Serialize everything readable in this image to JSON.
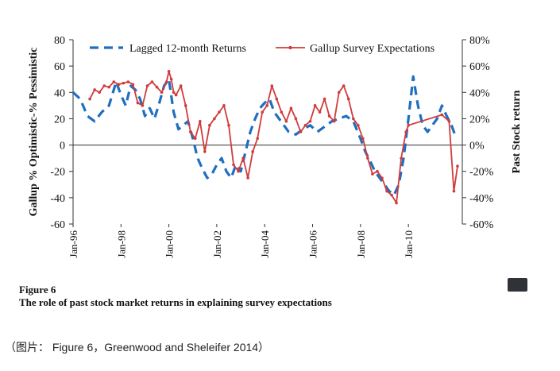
{
  "chart_data": {
    "type": "line",
    "title": "",
    "ylabel_left": "Gallup % Optimistic-% Pessimistic",
    "ylabel_right": "Past Stock return",
    "ylim_left": [
      -60,
      80
    ],
    "ylim_right": [
      -60,
      80
    ],
    "yticks_left": [
      "80",
      "60",
      "40",
      "20",
      "0",
      "-20",
      "-40",
      "-60"
    ],
    "yticks_right": [
      "80%",
      "60%",
      "40%",
      "20%",
      "0%",
      "-20%",
      "-40%",
      "-60%"
    ],
    "yticks_values": [
      80,
      60,
      40,
      20,
      0,
      -20,
      -40,
      -60
    ],
    "xlim": [
      1996.0,
      2012.25
    ],
    "xticks": [
      {
        "label": "Jan-96",
        "value": 1996.0
      },
      {
        "label": "Jan-98",
        "value": 1998.0
      },
      {
        "label": "Jan-00",
        "value": 2000.0
      },
      {
        "label": "Jan-02",
        "value": 2002.0
      },
      {
        "label": "Jan-04",
        "value": 2004.0
      },
      {
        "label": "Jan-06",
        "value": 2006.0
      },
      {
        "label": "Jan-08",
        "value": 2008.0
      },
      {
        "label": "Jan-10",
        "value": 2010.0
      }
    ],
    "legend_position": "top",
    "series": [
      {
        "name": "Lagged 12-month Returns",
        "color": "#1f6fc0",
        "style": "dashed",
        "axis": "right",
        "x": [
          1996.0,
          1996.3,
          1996.6,
          1996.9,
          1997.2,
          1997.5,
          1997.8,
          1998.0,
          1998.2,
          1998.4,
          1998.6,
          1998.8,
          1999.0,
          1999.2,
          1999.4,
          1999.6,
          1999.8,
          2000.0,
          2000.2,
          2000.4,
          2000.6,
          2000.8,
          2001.0,
          2001.2,
          2001.4,
          2001.6,
          2001.8,
          2002.0,
          2002.2,
          2002.4,
          2002.6,
          2002.8,
          2003.0,
          2003.2,
          2003.4,
          2003.6,
          2003.8,
          2004.0,
          2004.2,
          2004.4,
          2004.6,
          2004.8,
          2005.0,
          2005.3,
          2005.6,
          2005.9,
          2006.2,
          2006.5,
          2006.8,
          2007.1,
          2007.4,
          2007.7,
          2008.0,
          2008.2,
          2008.4,
          2008.6,
          2008.8,
          2009.0,
          2009.2,
          2009.4,
          2009.6,
          2009.8,
          2010.0,
          2010.2,
          2010.4,
          2010.6,
          2010.8,
          2011.0,
          2011.2,
          2011.4,
          2011.6,
          2011.8,
          2012.0
        ],
        "values": [
          40,
          35,
          22,
          18,
          25,
          30,
          48,
          38,
          30,
          45,
          42,
          35,
          22,
          28,
          20,
          32,
          45,
          50,
          25,
          12,
          15,
          18,
          5,
          -10,
          -18,
          -25,
          -22,
          -15,
          -10,
          -20,
          -25,
          -15,
          -20,
          -5,
          10,
          20,
          28,
          32,
          35,
          25,
          20,
          15,
          10,
          8,
          12,
          15,
          10,
          14,
          18,
          20,
          22,
          18,
          5,
          -5,
          -12,
          -20,
          -25,
          -30,
          -35,
          -38,
          -30,
          -10,
          20,
          52,
          30,
          15,
          10,
          15,
          20,
          30,
          22,
          15,
          5
        ]
      },
      {
        "name": "Gallup Survey Expectations",
        "color": "#d13b3b",
        "style": "solid-marker",
        "axis": "left",
        "x": [
          1996.7,
          1996.9,
          1997.1,
          1997.3,
          1997.5,
          1997.7,
          1997.9,
          1998.1,
          1998.3,
          1998.5,
          1998.7,
          1998.9,
          1999.1,
          1999.3,
          1999.5,
          1999.7,
          1999.9,
          2000.0,
          2000.1,
          2000.2,
          2000.3,
          2000.5,
          2000.7,
          2000.9,
          2001.1,
          2001.3,
          2001.5,
          2001.7,
          2001.9,
          2002.1,
          2002.3,
          2002.5,
          2002.7,
          2002.9,
          2003.1,
          2003.3,
          2003.5,
          2003.7,
          2003.9,
          2004.1,
          2004.3,
          2004.5,
          2004.7,
          2004.9,
          2005.1,
          2005.3,
          2005.5,
          2005.7,
          2005.9,
          2006.1,
          2006.3,
          2006.5,
          2006.7,
          2006.9,
          2007.1,
          2007.3,
          2007.5,
          2007.7,
          2007.9,
          2008.1,
          2008.3,
          2008.5,
          2008.7,
          2008.9,
          2009.1,
          2009.3,
          2009.5,
          2009.7,
          2009.9,
          2010.0,
          2011.4,
          2011.7,
          2011.9,
          2012.05
        ],
        "values": [
          35,
          42,
          40,
          45,
          44,
          48,
          46,
          47,
          48,
          46,
          32,
          30,
          45,
          48,
          44,
          40,
          48,
          56,
          50,
          40,
          38,
          45,
          30,
          10,
          5,
          18,
          -5,
          15,
          20,
          25,
          30,
          15,
          -15,
          -20,
          -10,
          -25,
          -5,
          5,
          25,
          30,
          45,
          35,
          25,
          18,
          28,
          20,
          10,
          15,
          18,
          30,
          25,
          35,
          22,
          18,
          40,
          45,
          35,
          20,
          15,
          5,
          -10,
          -22,
          -20,
          -25,
          -35,
          -38,
          -44,
          -10,
          10,
          15,
          23,
          18,
          -35,
          -16
        ]
      }
    ]
  },
  "caption": {
    "figure_number": "Figure 6",
    "figure_title": "The role of past stock market returns in explaining survey expectations"
  },
  "source_note": "（图片： Figure 6，Greenwood and Sheleifer 2014）"
}
